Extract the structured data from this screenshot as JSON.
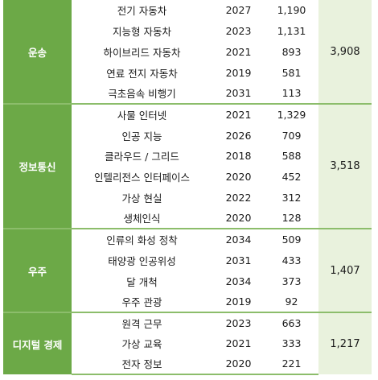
{
  "groups": [
    {
      "category": "운송",
      "total": "3,908",
      "rows": [
        {
          "name": "전기 자동차",
          "year": "2027",
          "value": "1,190"
        },
        {
          "name": "지능형 자동차",
          "year": "2023",
          "value": "1,131"
        },
        {
          "name": "하이브리드 자동차",
          "year": "2021",
          "value": "893"
        },
        {
          "name": "연료 전지 자동차",
          "year": "2019",
          "value": "581"
        },
        {
          "name": "극초음속 비행기",
          "year": "2031",
          "value": "113"
        }
      ]
    },
    {
      "category": "정보통신",
      "total": "3,518",
      "rows": [
        {
          "name": "사물 인터넷",
          "year": "2021",
          "value": "1,329"
        },
        {
          "name": "인공 지능",
          "year": "2026",
          "value": "709"
        },
        {
          "name": "클라우드 / 그리드",
          "year": "2018",
          "value": "588"
        },
        {
          "name": "인텔리전스 인터페이스",
          "year": "2020",
          "value": "452"
        },
        {
          "name": "가상 현실",
          "year": "2022",
          "value": "312"
        },
        {
          "name": "생체인식",
          "year": "2020",
          "value": "128"
        }
      ]
    },
    {
      "category": "우주",
      "total": "1,407",
      "rows": [
        {
          "name": "인류의 화성 정착",
          "year": "2034",
          "value": "509"
        },
        {
          "name": "태양광 인공위성",
          "year": "2031",
          "value": "433"
        },
        {
          "name": "달 개척",
          "year": "2034",
          "value": "373"
        },
        {
          "name": "우주 관광",
          "year": "2019",
          "value": "92"
        }
      ]
    },
    {
      "category": "디지털 경제",
      "total": "1,217",
      "rows": [
        {
          "name": "원격 근무",
          "year": "2023",
          "value": "663"
        },
        {
          "name": "가상 교육",
          "year": "2021",
          "value": "333"
        },
        {
          "name": "전자 정보",
          "year": "2020",
          "value": "221"
        }
      ]
    }
  ],
  "colors": {
    "category_bg": "#6ca947",
    "total_bg": "#e9f2dd",
    "divider": "#8cbd6b"
  }
}
